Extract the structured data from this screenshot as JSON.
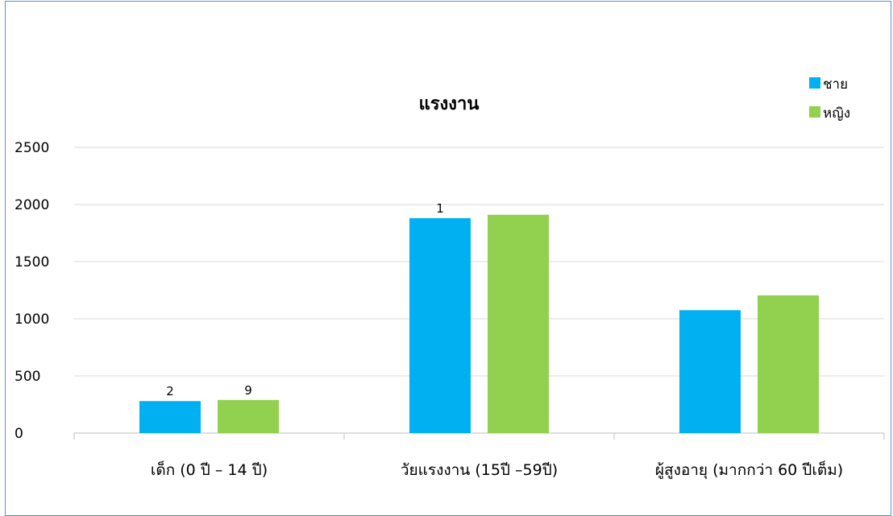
{
  "chart_data": {
    "type": "bar",
    "title": "แรงงาน",
    "xlabel": "",
    "ylabel": "",
    "categories": [
      "เด็ก (0 ปี – 14 ปี)",
      "วัยแรงงาน (15ปี –59ปี)",
      "ผู้สูงอายุ (มากกว่า 60 ปีเต็ม)"
    ],
    "series": [
      {
        "name": "ชาย",
        "color": "#00b0f0",
        "values": [
          280,
          1880,
          1075
        ],
        "labels": [
          "2",
          "1",
          ""
        ]
      },
      {
        "name": "หญิง",
        "color": "#92d050",
        "values": [
          290,
          1910,
          1205
        ],
        "labels": [
          "9",
          "",
          ""
        ]
      }
    ],
    "ylim": [
      0,
      2500
    ],
    "yticks": [
      0,
      500,
      1000,
      1500,
      2000,
      2500
    ],
    "grid": true,
    "legend": "top-right"
  }
}
